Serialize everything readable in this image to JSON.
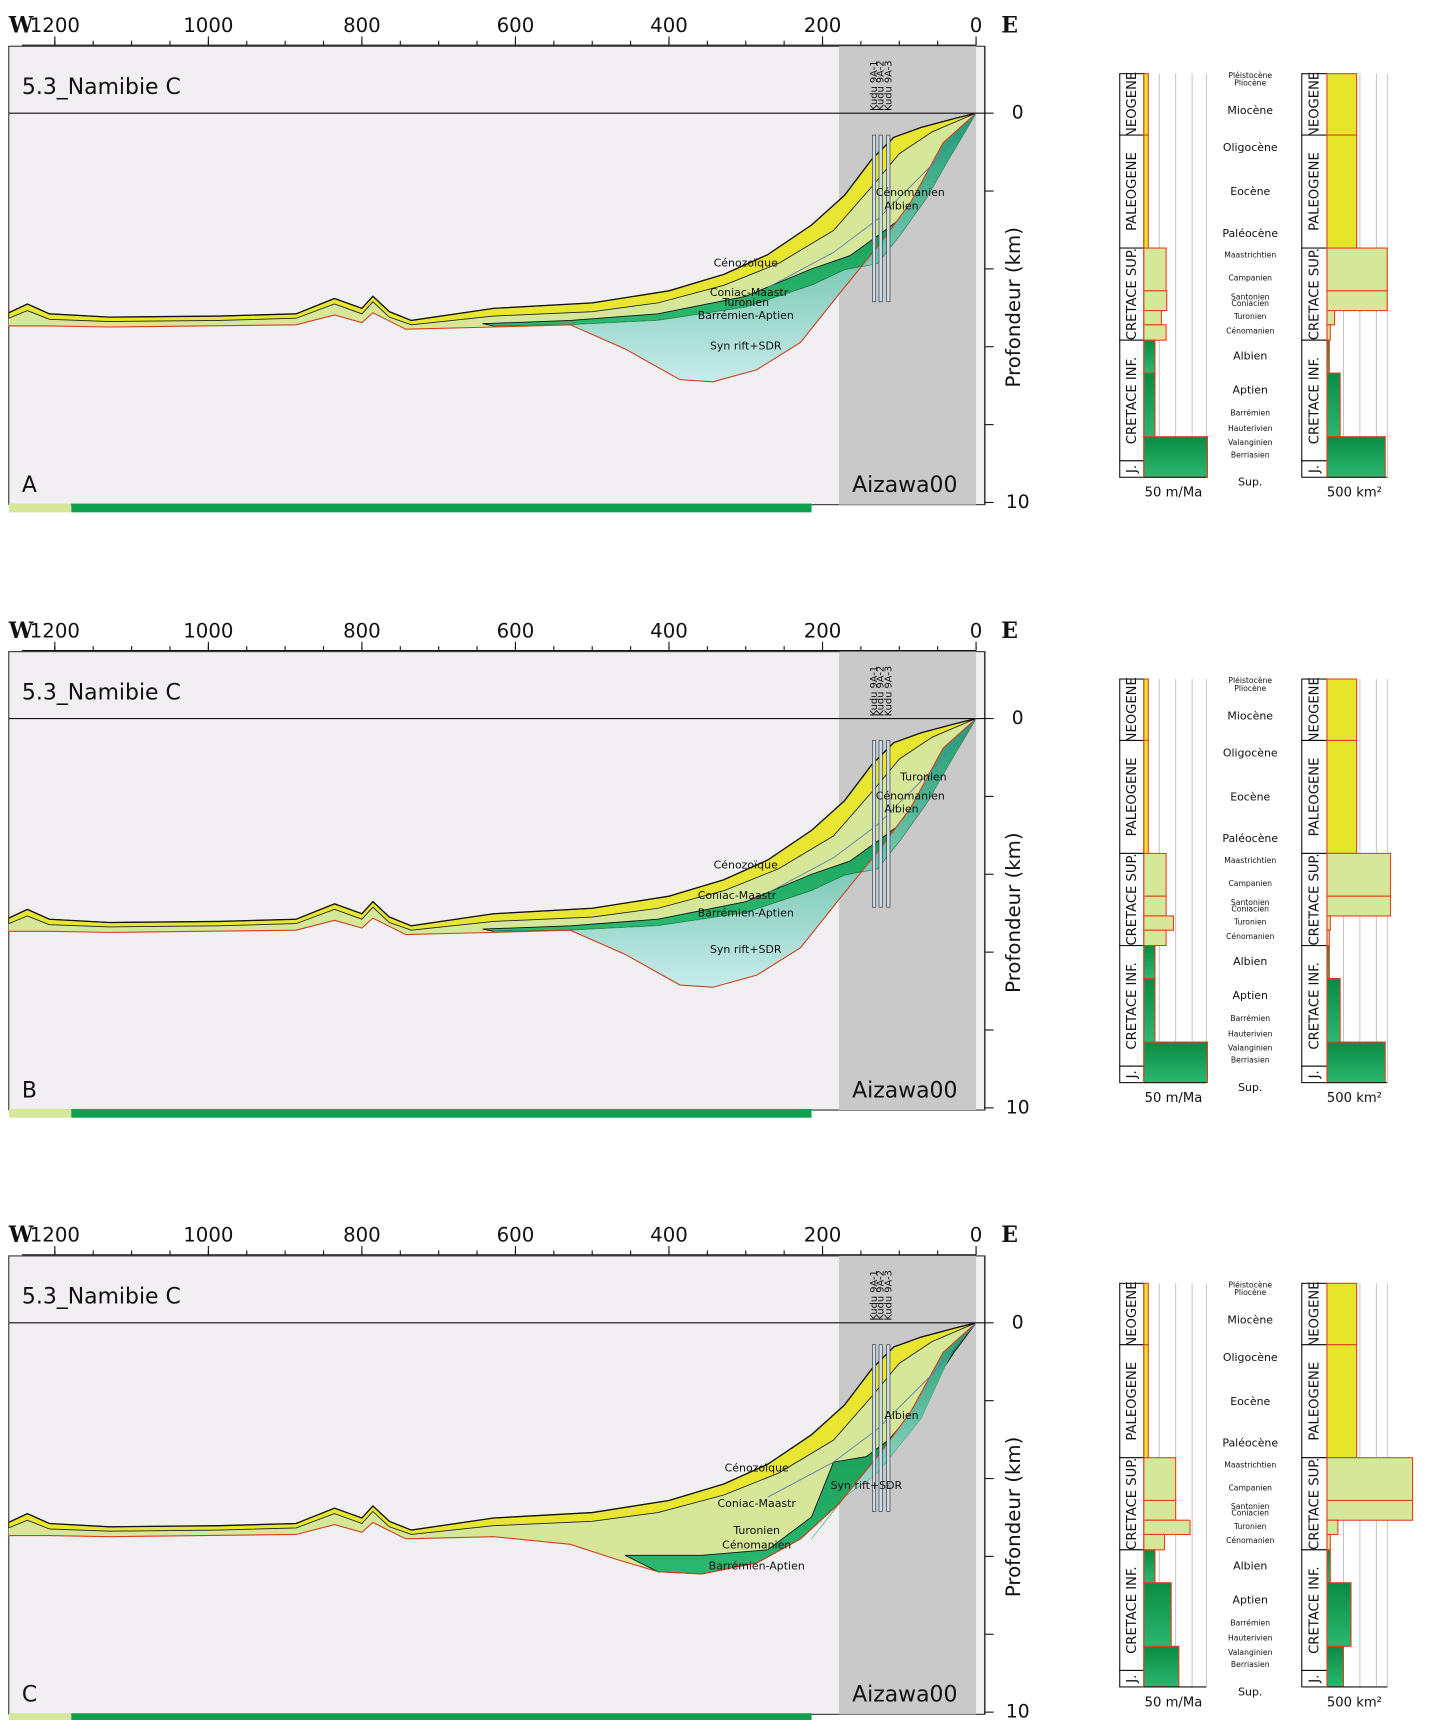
{
  "title": "5.3_Namibie C",
  "section": "Aizawa00",
  "west": "W",
  "east": "E",
  "xticks": [
    1200,
    1000,
    800,
    600,
    400,
    200,
    0
  ],
  "yticks": [
    0,
    10
  ],
  "ylabel": "Profondeur (km)",
  "wells": [
    "Kudu 9A-1",
    "Kudu 9A-2",
    "Kudu 9A-3"
  ],
  "periods": [
    "NEOGENE",
    "PALEOGENE",
    "CRETACE SUP.",
    "CRETACE INF.",
    "J."
  ],
  "stages": [
    "Pléistocène",
    "Pliocène",
    "Miocène",
    "Oligocène",
    "Eocène",
    "Paléocène",
    "Maastrichtien",
    "Campanien",
    "Santonien",
    "Coniacien",
    "Turonien",
    "Cénomanien",
    "Albien",
    "Aptien",
    "Barrémien",
    "Hauterivien",
    "Valanginien",
    "Berriasien"
  ],
  "bottom_label": "Sup.",
  "rate_unit": "50 m/Ma",
  "area_unit": "500 km²",
  "panels": [
    {
      "letter": "A",
      "layers": [
        "Cénozoïque",
        "Coniac-Maastr",
        "Turonien",
        "Barrémien-Aptien",
        "Syn rift+SDR",
        "Cénomanien",
        "Albien"
      ],
      "rate": [
        14,
        14,
        70,
        72,
        55,
        70,
        35,
        35,
        200
      ],
      "area": [
        900,
        900,
        1830,
        1830,
        230,
        100,
        70,
        400,
        1770
      ]
    },
    {
      "letter": "B",
      "layers": [
        "Cénozoïque",
        "Coniac-Maastr",
        "Barrémien-Aptien",
        "Syn rift+SDR",
        "Turonien",
        "Cénomanien",
        "Albien"
      ],
      "rate": [
        14,
        14,
        70,
        70,
        93,
        70,
        35,
        35,
        200
      ],
      "area": [
        900,
        900,
        1930,
        1930,
        100,
        70,
        70,
        400,
        1770
      ]
    },
    {
      "letter": "C",
      "layers": [
        "Cénozoïque",
        "Coniac-Maastr",
        "Turonien",
        "Cénomanien",
        "Barrémien-Aptien",
        "Syn rift+SDR",
        "Albien"
      ],
      "rate": [
        14,
        14,
        100,
        100,
        145,
        65,
        35,
        86,
        110
      ],
      "area": [
        900,
        900,
        2600,
        2600,
        330,
        100,
        100,
        730,
        500
      ]
    }
  ]
}
